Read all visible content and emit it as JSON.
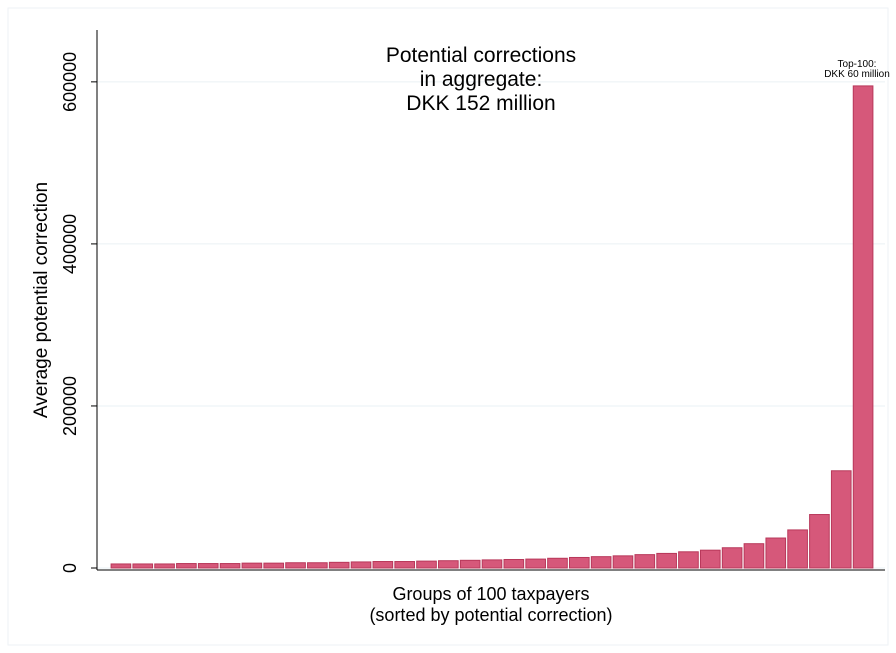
{
  "chart_data": {
    "type": "bar",
    "title": [
      "Potential corrections",
      "in aggregate:",
      "DKK 152 million"
    ],
    "xlabel": [
      "Groups of 100 taxpayers",
      "(sorted by potential correction)"
    ],
    "ylabel": "Average potential correction",
    "annotation": [
      "Top-100:",
      "DKK 60 million"
    ],
    "values": [
      5000,
      5000,
      5000,
      5500,
      5500,
      5500,
      6000,
      6000,
      6500,
      6500,
      7000,
      7500,
      8000,
      8000,
      8500,
      9000,
      9500,
      10000,
      10500,
      11000,
      12000,
      13000,
      14000,
      15000,
      16500,
      18000,
      20000,
      22000,
      25000,
      30000,
      37000,
      47000,
      66000,
      120000,
      595000
    ],
    "color": "#d6587a",
    "ylim": [
      0,
      664000
    ],
    "yticks": [
      0,
      200000,
      400000,
      600000
    ],
    "grid": true
  }
}
